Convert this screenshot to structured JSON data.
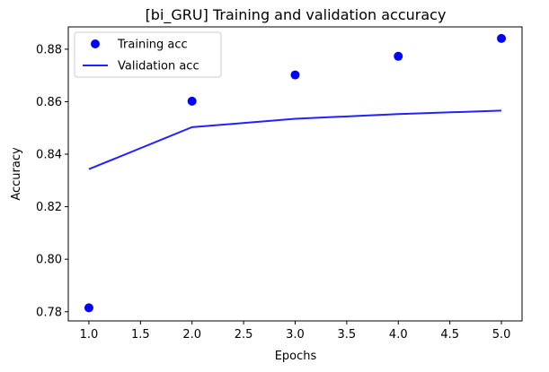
{
  "chart_data": {
    "type": "line",
    "title": "[bi_GRU] Training and validation accuracy",
    "xlabel": "Epochs",
    "ylabel": "Accuracy",
    "xlim": [
      0.8,
      5.2
    ],
    "ylim": [
      0.7765,
      0.8885
    ],
    "x_ticks": [
      1.0,
      1.5,
      2.0,
      2.5,
      3.0,
      3.5,
      4.0,
      4.5,
      5.0
    ],
    "x_tick_labels": [
      "1.0",
      "1.5",
      "2.0",
      "2.5",
      "3.0",
      "3.5",
      "4.0",
      "4.5",
      "5.0"
    ],
    "y_ticks": [
      0.78,
      0.8,
      0.82,
      0.84,
      0.86,
      0.88
    ],
    "y_tick_labels": [
      "0.78",
      "0.80",
      "0.82",
      "0.84",
      "0.86",
      "0.88"
    ],
    "grid": false,
    "legend_position": "upper-left",
    "series": [
      {
        "name": "Training acc",
        "style": "markers",
        "color": "#0000ff",
        "x": [
          1,
          2,
          3,
          4,
          5
        ],
        "values": [
          0.7815,
          0.8602,
          0.8702,
          0.8773,
          0.8841
        ]
      },
      {
        "name": "Validation acc",
        "style": "line",
        "color": "#2222ff",
        "x": [
          1,
          2,
          3,
          4,
          5
        ],
        "values": [
          0.8343,
          0.8503,
          0.8535,
          0.8553,
          0.8566
        ]
      }
    ]
  }
}
